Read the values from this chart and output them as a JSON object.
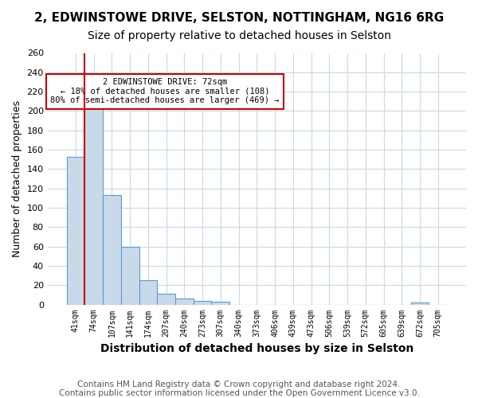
{
  "title1": "2, EDWINSTOWE DRIVE, SELSTON, NOTTINGHAM, NG16 6RG",
  "title2": "Size of property relative to detached houses in Selston",
  "xlabel": "Distribution of detached houses by size in Selston",
  "ylabel": "Number of detached properties",
  "footer1": "Contains HM Land Registry data © Crown copyright and database right 2024.",
  "footer2": "Contains public sector information licensed under the Open Government Licence v3.0.",
  "bin_labels": [
    "41sqm",
    "74sqm",
    "107sqm",
    "141sqm",
    "174sqm",
    "207sqm",
    "240sqm",
    "273sqm",
    "307sqm",
    "340sqm",
    "373sqm",
    "406sqm",
    "439sqm",
    "473sqm",
    "506sqm",
    "539sqm",
    "572sqm",
    "605sqm",
    "639sqm",
    "672sqm",
    "705sqm"
  ],
  "bar_values": [
    153,
    210,
    113,
    60,
    25,
    11,
    6,
    4,
    3,
    0,
    0,
    0,
    0,
    0,
    0,
    0,
    0,
    0,
    0,
    2,
    0
  ],
  "bar_color": "#c8d9ea",
  "bar_edge_color": "#5b9bd5",
  "grid_color": "#c8d9ea",
  "property_line_x": 0.5,
  "property_line_color": "#cc0000",
  "annotation_text": "2 EDWINSTOWE DRIVE: 72sqm\n← 18% of detached houses are smaller (108)\n80% of semi-detached houses are larger (469) →",
  "annotation_box_color": "#ffffff",
  "annotation_box_edge": "#cc0000",
  "ylim": [
    0,
    260
  ],
  "yticks": [
    0,
    20,
    40,
    60,
    80,
    100,
    120,
    140,
    160,
    180,
    200,
    220,
    240,
    260
  ],
  "background_color": "#ffffff",
  "title1_fontsize": 11,
  "title2_fontsize": 10,
  "xlabel_fontsize": 10,
  "ylabel_fontsize": 9,
  "tick_fontsize": 7,
  "footer_fontsize": 7.5
}
